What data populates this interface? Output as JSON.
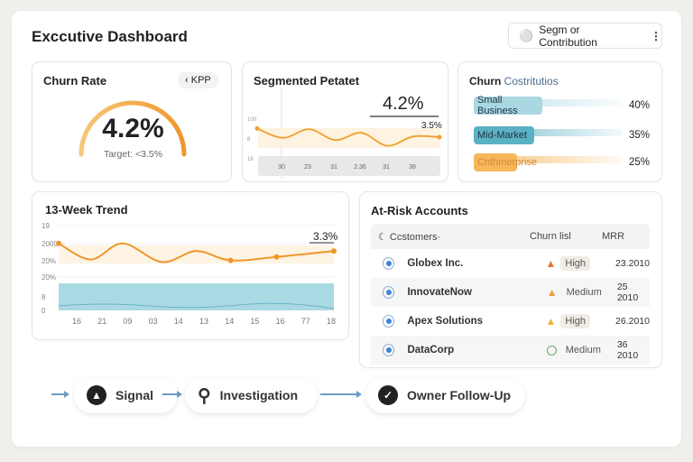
{
  "header": {
    "title": "Exccutive Dashboard",
    "button_label": "Segm or Contribution",
    "button_icon": "bell-icon",
    "menu_icon": "more-vertical-icon"
  },
  "churn_rate": {
    "title": "Churn Rate",
    "badge": "KPP",
    "value": "4.2%",
    "target": "Target: <3.5%",
    "gauge_fill_percent": 100
  },
  "segmented": {
    "title": "Segmented Petatet",
    "value": "4.2%",
    "marker": "3.5%",
    "y_ticks": [
      "100",
      "8",
      "16"
    ],
    "chart_data": {
      "type": "line",
      "x_labels": [
        "30",
        "23",
        "31",
        "2.36",
        "31",
        "38"
      ],
      "values": [
        72,
        59,
        71,
        56,
        66,
        48,
        61,
        60
      ],
      "ylim": [
        0,
        100
      ]
    }
  },
  "contribution": {
    "title_a": "Churn ",
    "title_b": "Costritutios",
    "items": [
      {
        "label": "Small Business",
        "percent": "40%",
        "value": 40,
        "color": "#a9d8e3"
      },
      {
        "label": "Mid-Market",
        "percent": "35%",
        "value": 35,
        "color": "#5bb1c4"
      },
      {
        "label": "Cnthmerprise",
        "percent": "25%",
        "value": 25,
        "color": "#f6b65a"
      }
    ]
  },
  "trend": {
    "title": "13-Week Trend",
    "marker": "3.3%",
    "y_ticks": [
      "19",
      "2000",
      "20%",
      "20%",
      "8",
      "0"
    ],
    "chart_data": {
      "type": "line",
      "x_labels": [
        "16",
        "21",
        "09",
        "03",
        "14",
        "13",
        "14",
        "15",
        "16",
        "77",
        "18"
      ],
      "x": [
        0,
        1.4,
        2.8,
        4.5,
        6,
        7.5,
        9.5,
        12
      ],
      "values": [
        79,
        60,
        79,
        57,
        70,
        59,
        63,
        70
      ],
      "ylim": [
        0,
        100
      ],
      "markers": [
        0,
        7.5,
        9.5,
        12
      ]
    }
  },
  "accounts": {
    "title": "At-Risk Accounts",
    "columns": [
      "Ccstomers·",
      "Churn lisl",
      "MRR"
    ],
    "rows": [
      {
        "name": "Globex Inc.",
        "risk": "High",
        "mrr": "23.2010",
        "icon": "warning-icon",
        "color": "#e8762a"
      },
      {
        "name": "InnovateNow",
        "risk": "Medium",
        "mrr": "25 2010",
        "icon": "warning-icon",
        "color": "#f0a040"
      },
      {
        "name": "Apex Solutions",
        "risk": "High",
        "mrr": "26.2010",
        "icon": "warning-icon",
        "color": "#f2b03a"
      },
      {
        "name": "DataCorp",
        "risk": "Medium",
        "mrr": "36 2010",
        "icon": "circle-icon",
        "color": "#6aa86a"
      }
    ]
  },
  "flow": [
    {
      "label": "Signal",
      "icon": "bell-icon"
    },
    {
      "label": "Investigation",
      "icon": "search-icon"
    },
    {
      "label": "Owner Follow-Up",
      "icon": "badge-check-icon"
    }
  ],
  "colors": {
    "accent": "#f0a030",
    "teal": "#5bb1c4"
  }
}
